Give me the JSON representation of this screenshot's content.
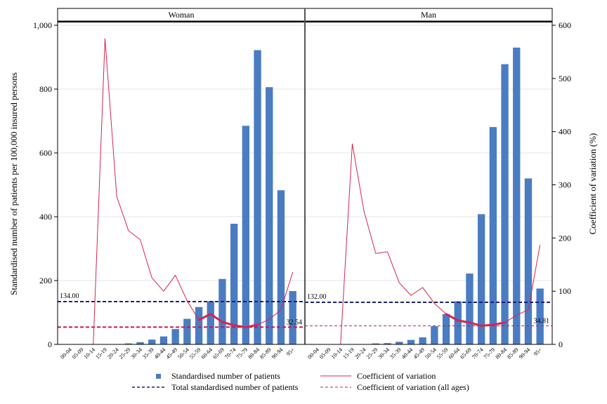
{
  "chart_data": {
    "type": "bar",
    "categories": [
      "00-04",
      "05-09",
      "10-14",
      "15-19",
      "20-24",
      "25-29",
      "30-34",
      "35-39",
      "40-44",
      "45-49",
      "50-54",
      "55-59",
      "60-64",
      "65-69",
      "70-74",
      "75-79",
      "80-84",
      "85-89",
      "90-94",
      "95+"
    ],
    "ylabel": "Standardised number of patients per 100,000 insured persons",
    "y2label": "Coefficient of variation (%)",
    "ylim": [
      0,
      1000
    ],
    "y2lim": [
      0,
      600
    ],
    "yticks": [
      0,
      200,
      400,
      600,
      800,
      1000
    ],
    "yticklabels": [
      "0",
      "200",
      "400",
      "600",
      "800",
      "1,000"
    ],
    "y2ticks": [
      0,
      100,
      200,
      300,
      400,
      500,
      600
    ],
    "grid": true,
    "panels": [
      {
        "title": "Woman",
        "patients": [
          0,
          0,
          0,
          0,
          1,
          3,
          7,
          15,
          25,
          48,
          80,
          117,
          135,
          205,
          378,
          685,
          922,
          806,
          483,
          167
        ],
        "cv": [
          null,
          null,
          0,
          575,
          278,
          214,
          197,
          125,
          100,
          130,
          82,
          46,
          57,
          42,
          36,
          32,
          37,
          47,
          65,
          136
        ],
        "total": 134.0,
        "total_label": "134.00",
        "cv_all": 32.54,
        "cv_all_label": "32.54",
        "cv_highlight": [
          11,
          16
        ]
      },
      {
        "title": "Man",
        "patients": [
          0,
          0,
          0,
          0,
          1,
          3,
          4,
          8,
          14,
          22,
          57,
          95,
          135,
          222,
          408,
          681,
          878,
          930,
          520,
          175
        ],
        "cv": [
          null,
          null,
          0,
          377,
          250,
          171,
          174,
          116,
          92,
          107,
          77,
          57,
          45,
          41,
          35,
          37,
          41,
          55,
          65,
          187
        ],
        "total": 132.0,
        "total_label": "132.00",
        "cv_all": 34.81,
        "cv_all_label": "34.81",
        "cv_highlight": [
          11,
          16
        ]
      }
    ],
    "legend": {
      "placement": "bottom",
      "items": [
        "Standardised number of patients",
        "Coefficient of variation",
        "Total standardised number of patients",
        "Coefficient of variation (all ages)"
      ]
    },
    "colors": {
      "bar": "#4a7cc2",
      "cv_line": "#d6244f",
      "cv_highlight": "#d6244f",
      "total_line": "#1a1f7a",
      "cv_all_line": "#c9184a",
      "grid": "#e6e6e6"
    }
  }
}
